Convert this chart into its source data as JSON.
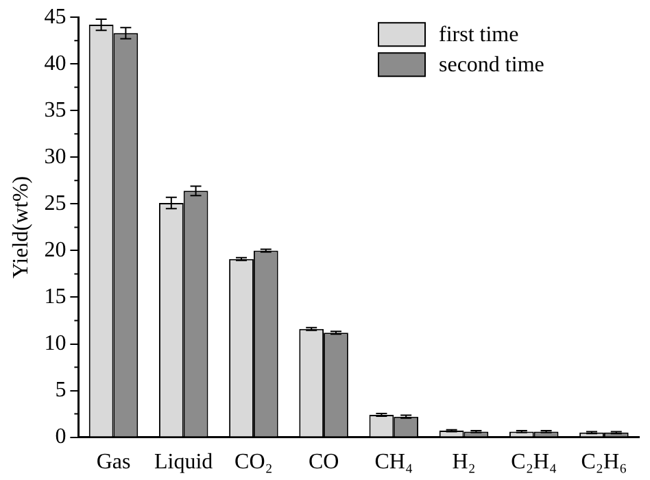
{
  "chart_data": {
    "type": "bar",
    "ylabel": "Yield(wt%)",
    "categories": [
      "Gas",
      "Liquid",
      "CO₂",
      "CO",
      "CH₄",
      "H₂",
      "C₂H₄",
      "C₂H₆"
    ],
    "series": [
      {
        "name": "first time",
        "color": "#d9d9d9",
        "values": [
          44.2,
          25.1,
          19.1,
          11.6,
          2.4,
          0.7,
          0.6,
          0.5
        ],
        "errors": [
          0.6,
          0.6,
          0.15,
          0.15,
          0.15,
          0.1,
          0.1,
          0.1
        ]
      },
      {
        "name": "second time",
        "color": "#8c8c8c",
        "values": [
          43.3,
          26.4,
          20.0,
          11.2,
          2.2,
          0.6,
          0.6,
          0.5
        ],
        "errors": [
          0.6,
          0.5,
          0.15,
          0.15,
          0.15,
          0.1,
          0.1,
          0.1
        ]
      }
    ],
    "ylim": [
      0,
      45
    ],
    "yticks": [
      0,
      5,
      10,
      15,
      20,
      25,
      30,
      35,
      40,
      45
    ],
    "grid": false,
    "legend": "top right"
  }
}
